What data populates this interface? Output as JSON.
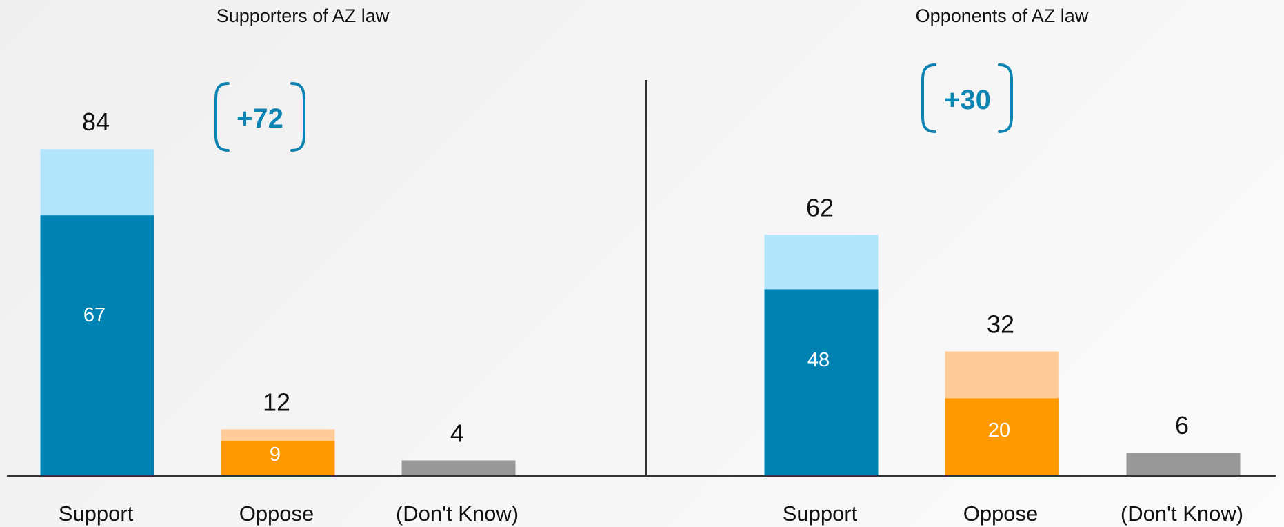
{
  "chart_data": [
    {
      "type": "bar",
      "stacked": true,
      "title": "Supporters of AZ law",
      "categories": [
        "Support",
        "Oppose",
        "(Don't Know)"
      ],
      "series": [
        {
          "values": [
            67,
            9,
            4
          ]
        },
        {
          "values": [
            17,
            3,
            0
          ]
        }
      ],
      "totals": [
        84,
        12,
        4
      ],
      "inner_labels": [
        "67",
        "9",
        ""
      ],
      "total_labels": [
        "84",
        "12",
        "4"
      ],
      "net_label": "+72",
      "ylim": [
        0,
        100
      ],
      "grid": false
    },
    {
      "type": "bar",
      "stacked": true,
      "title": "Opponents of AZ law",
      "categories": [
        "Support",
        "Oppose",
        "(Don't Know)"
      ],
      "series": [
        {
          "values": [
            48,
            20,
            6
          ]
        },
        {
          "values": [
            14,
            12,
            0
          ]
        }
      ],
      "totals": [
        62,
        32,
        6
      ],
      "inner_labels": [
        "48",
        "20",
        ""
      ],
      "total_labels": [
        "62",
        "32",
        "6"
      ],
      "net_label": "+30",
      "ylim": [
        0,
        100
      ],
      "grid": false
    }
  ],
  "colors": {
    "support_strong": "#0083B3",
    "support_soft": "#B3E5FC",
    "oppose_strong": "#FF9900",
    "oppose_soft": "#FFCC99",
    "dont_know": "#999999",
    "net_bracket": "#0B84B4",
    "axis": "#333333"
  }
}
